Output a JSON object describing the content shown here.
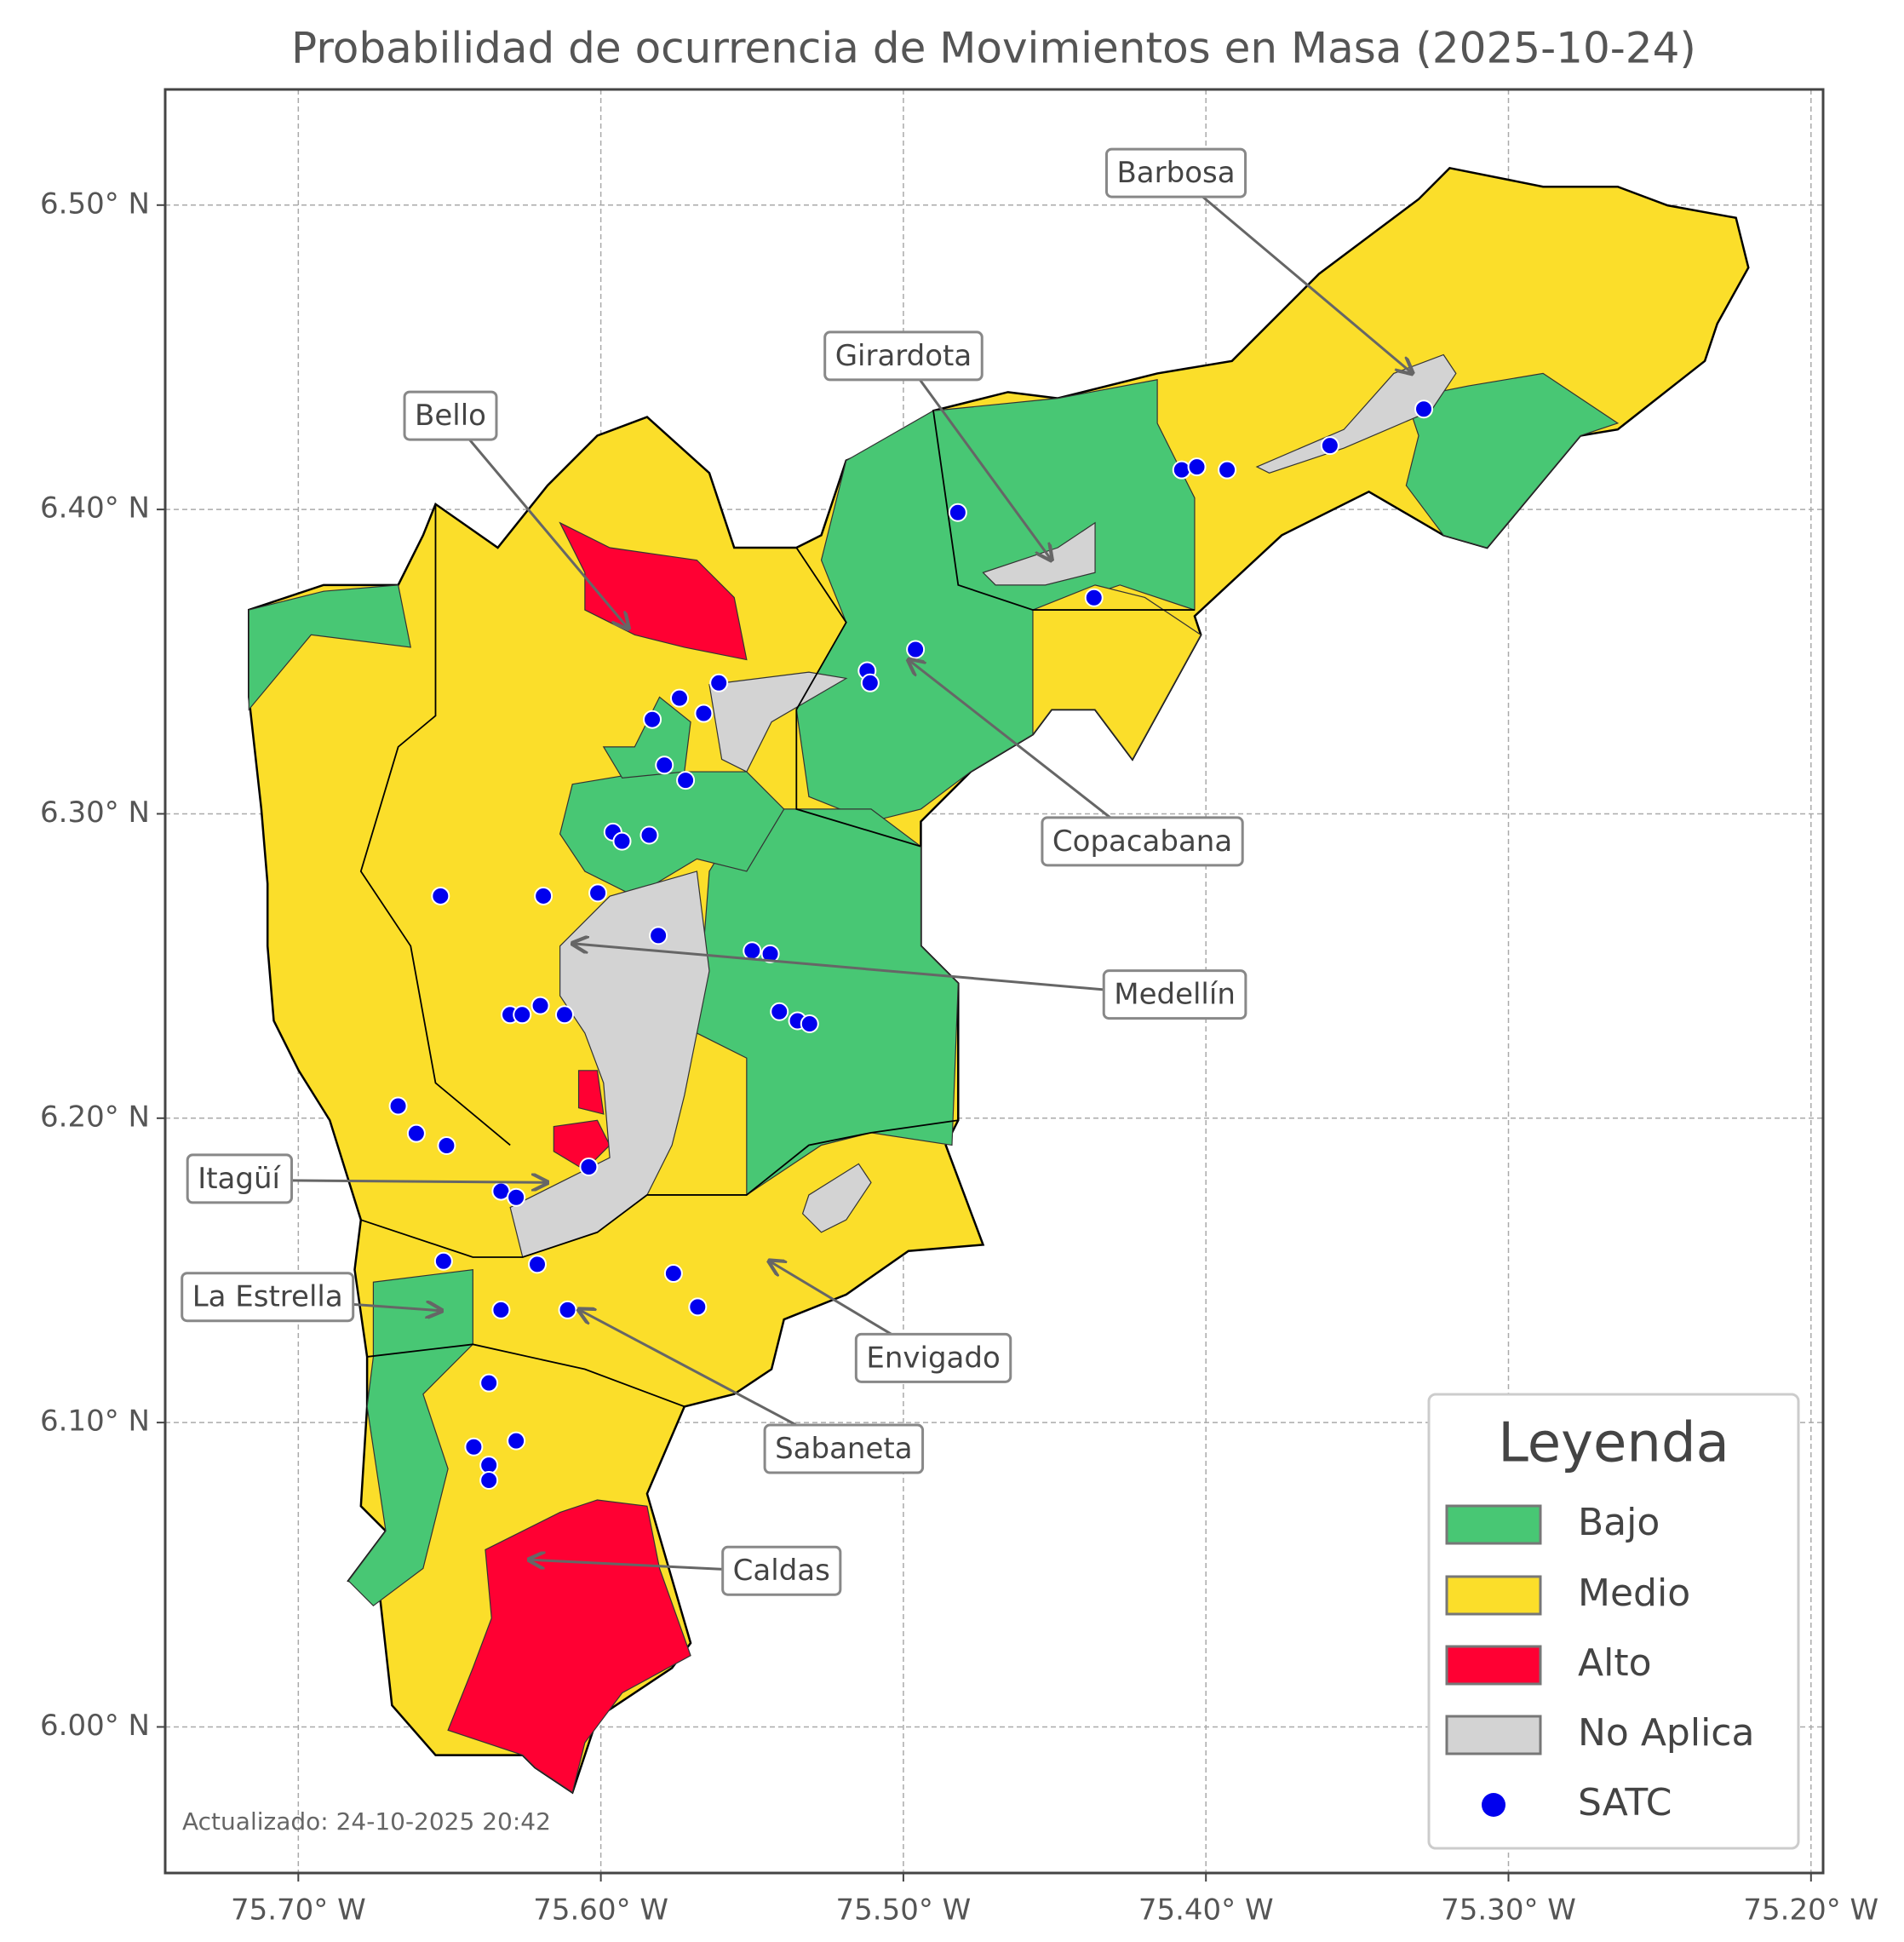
{
  "chart_data": {
    "type": "map",
    "title": "Probabilidad de ocurrencia de Movimientos en Masa (2025-10-24)",
    "xlim": [
      -75.744,
      -75.196
    ],
    "ylim": [
      5.952,
      6.538
    ],
    "xticks": [
      {
        "value": -75.7,
        "label": "75.70° W"
      },
      {
        "value": -75.6,
        "label": "75.60° W"
      },
      {
        "value": -75.5,
        "label": "75.50° W"
      },
      {
        "value": -75.4,
        "label": "75.40° W"
      },
      {
        "value": -75.3,
        "label": "75.30° W"
      },
      {
        "value": -75.2,
        "label": "75.20° W"
      }
    ],
    "yticks": [
      {
        "value": 6.0,
        "label": "6.00° N"
      },
      {
        "value": 6.1,
        "label": "6.10° N"
      },
      {
        "value": 6.2,
        "label": "6.20° N"
      },
      {
        "value": 6.3,
        "label": "6.30° N"
      },
      {
        "value": 6.4,
        "label": "6.40° N"
      },
      {
        "value": 6.5,
        "label": "6.50° N"
      }
    ],
    "grid": true,
    "legend_title": "Leyenda",
    "categories": [
      {
        "name": "Bajo",
        "color": "#48c774"
      },
      {
        "name": "Medio",
        "color": "#fbde2a"
      },
      {
        "name": "Alto",
        "color": "#ff0033"
      },
      {
        "name": "No Aplica",
        "color": "#d3d3d3"
      }
    ],
    "points": {
      "name": "SATC",
      "color": "#0000ee",
      "x": [
        -75.482,
        -75.437,
        -75.408,
        -75.403,
        -75.393,
        -75.359,
        -75.328,
        -75.512,
        -75.511,
        -75.496,
        -75.561,
        -75.574,
        -75.566,
        -75.583,
        -75.579,
        -75.572,
        -75.596,
        -75.593,
        -75.584,
        -75.653,
        -75.619,
        -75.601,
        -75.581,
        -75.55,
        -75.544,
        -75.541,
        -75.535,
        -75.531,
        -75.63,
        -75.626,
        -75.62,
        -75.612,
        -75.667,
        -75.661,
        -75.651,
        -75.604,
        -75.633,
        -75.628,
        -75.652,
        -75.621,
        -75.576,
        -75.568,
        -75.633,
        -75.611,
        -75.637,
        -75.642,
        -75.628,
        -75.637,
        -75.637
      ],
      "y": [
        6.399,
        6.371,
        6.413,
        6.414,
        6.413,
        6.421,
        6.433,
        6.347,
        6.343,
        6.354,
        6.343,
        6.338,
        6.333,
        6.331,
        6.316,
        6.311,
        6.294,
        6.291,
        6.293,
        6.273,
        6.273,
        6.274,
        6.26,
        6.255,
        6.254,
        6.235,
        6.232,
        6.231,
        6.234,
        6.234,
        6.237,
        6.234,
        6.204,
        6.195,
        6.191,
        6.184,
        6.176,
        6.174,
        6.153,
        6.152,
        6.149,
        6.138,
        6.137,
        6.137,
        6.113,
        6.092,
        6.094,
        6.086,
        6.081
      ]
    },
    "annotations": [
      "Barbosa",
      "Girardota",
      "Bello",
      "Copacabana",
      "Medellín",
      "Itagüí",
      "La Estrella",
      "Envigado",
      "Sabaneta",
      "Caldas"
    ],
    "footnote": "Actualizado: 24-10-2025 20:42"
  }
}
